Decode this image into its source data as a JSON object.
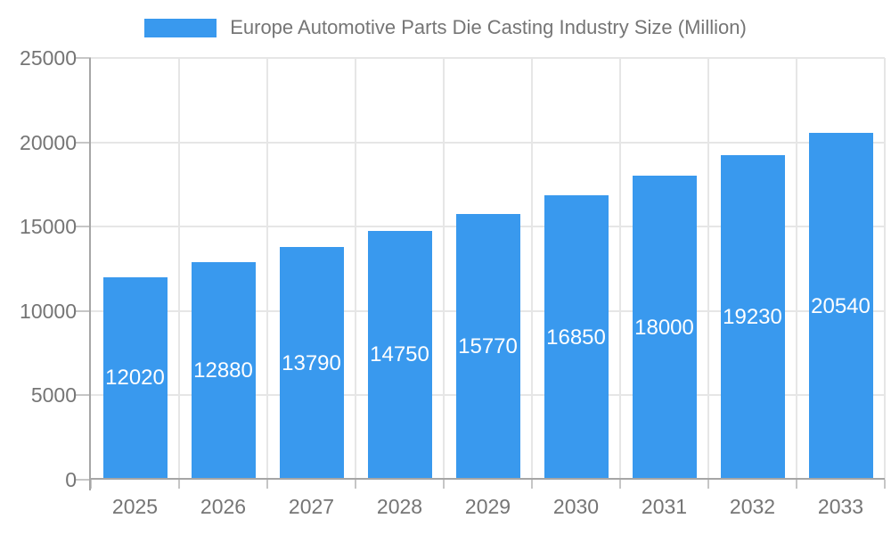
{
  "chart_data": {
    "type": "bar",
    "title": "Europe Automotive Parts Die Casting Industry Size (Million)",
    "categories": [
      "2025",
      "2026",
      "2027",
      "2028",
      "2029",
      "2030",
      "2031",
      "2032",
      "2033"
    ],
    "values": [
      12020,
      12880,
      13790,
      14750,
      15770,
      16850,
      18000,
      19230,
      20540
    ],
    "xlabel": "",
    "ylabel": "",
    "ylim": [
      0,
      25000
    ],
    "yticks": [
      0,
      5000,
      10000,
      15000,
      20000,
      25000
    ],
    "ytick_labels": [
      "0",
      "5000",
      "10000",
      "15000",
      "20000",
      "25000"
    ],
    "grid": true,
    "legend_position": "top",
    "bar_value_labels_visible": true,
    "colors": {
      "bar": "#3999EE",
      "bar_label_text": "#ffffff",
      "axis_line": "#a6a6a6",
      "gridline": "#e6e6e6",
      "tick": "#c6c6c6",
      "tick_label_text": "#757575",
      "legend_text": "#757575",
      "background": "#ffffff"
    }
  }
}
